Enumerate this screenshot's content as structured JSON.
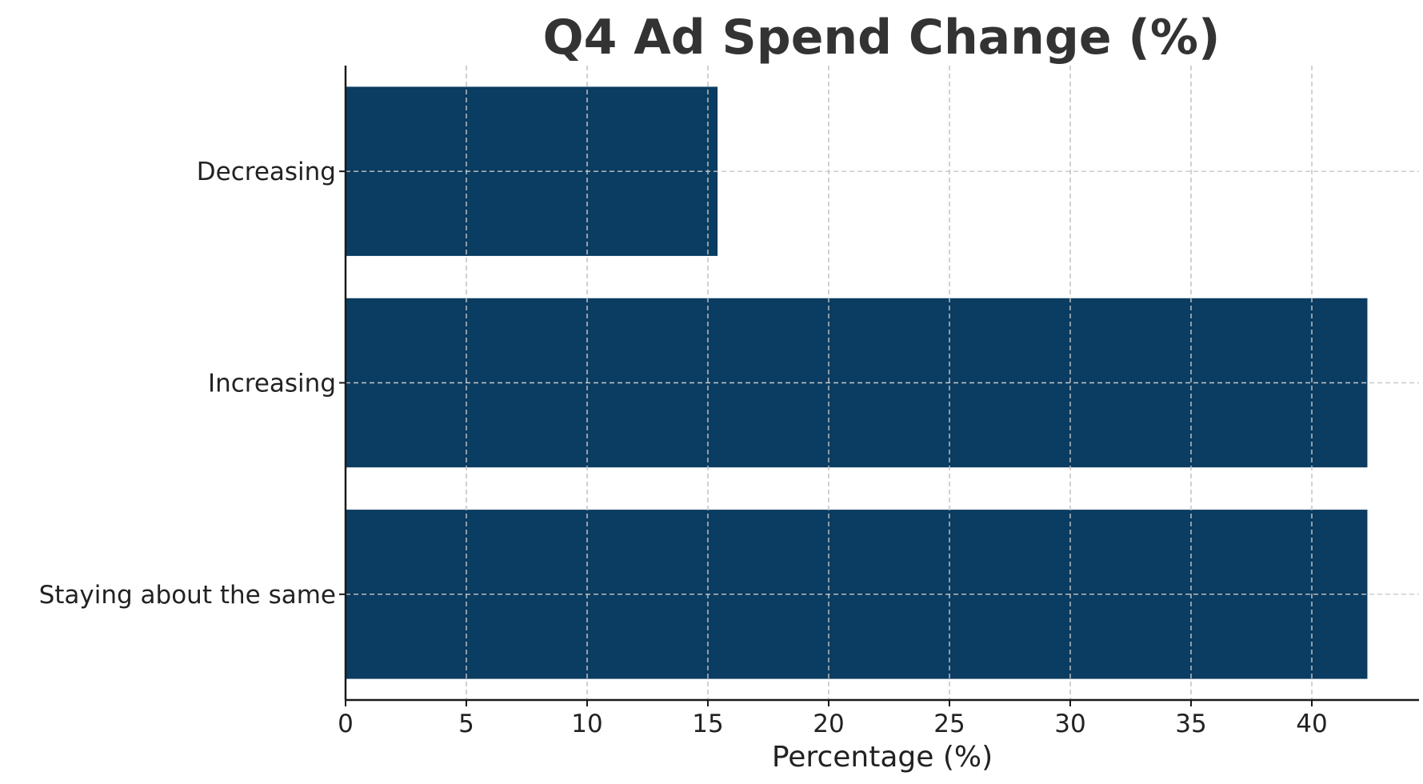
{
  "chart_data": {
    "type": "bar",
    "orientation": "horizontal",
    "title": "Q4 Ad Spend Change (%)",
    "xlabel": "Percentage (%)",
    "ylabel": "",
    "categories": [
      "Staying about the same",
      "Increasing",
      "Decreasing"
    ],
    "values": [
      42.3,
      42.3,
      15.4
    ],
    "xlim": [
      0,
      44.5
    ],
    "xticks": [
      0,
      5,
      10,
      15,
      20,
      25,
      30,
      35,
      40
    ],
    "grid": true,
    "bar_color": "#0b3c61"
  }
}
